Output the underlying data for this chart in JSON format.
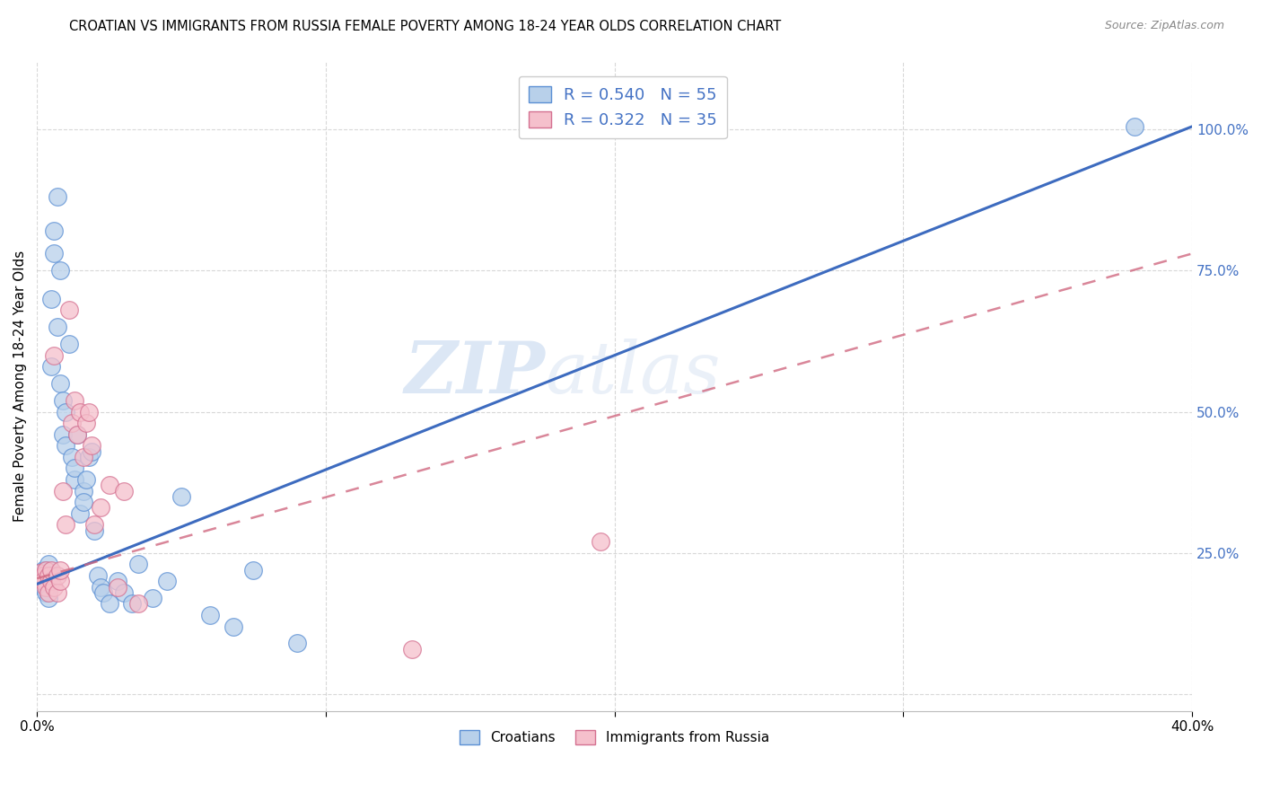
{
  "title": "CROATIAN VS IMMIGRANTS FROM RUSSIA FEMALE POVERTY AMONG 18-24 YEAR OLDS CORRELATION CHART",
  "source": "Source: ZipAtlas.com",
  "ylabel": "Female Poverty Among 18-24 Year Olds",
  "legend_blue_label": "R = 0.540   N = 55",
  "legend_pink_label": "R = 0.322   N = 35",
  "legend_label_blue": "Croatians",
  "legend_label_pink": "Immigrants from Russia",
  "blue_face": "#b8d0ea",
  "pink_face": "#f5c0cc",
  "blue_edge": "#5b8fd4",
  "pink_edge": "#d47090",
  "line_blue_color": "#3d6bbf",
  "line_pink_color": "#d06880",
  "watermark_zip": "ZIP",
  "watermark_atlas": "atlas",
  "blue_line_x0": 0.0,
  "blue_line_y0": 0.195,
  "blue_line_x1": 0.4,
  "blue_line_y1": 1.005,
  "pink_line_x0": 0.0,
  "pink_line_y0": 0.205,
  "pink_line_x1": 0.4,
  "pink_line_y1": 0.78,
  "blue_scatter_x": [
    0.001,
    0.001,
    0.001,
    0.002,
    0.002,
    0.002,
    0.003,
    0.003,
    0.003,
    0.003,
    0.004,
    0.004,
    0.004,
    0.005,
    0.005,
    0.005,
    0.005,
    0.006,
    0.006,
    0.007,
    0.007,
    0.008,
    0.008,
    0.009,
    0.009,
    0.01,
    0.01,
    0.011,
    0.012,
    0.013,
    0.013,
    0.014,
    0.015,
    0.016,
    0.016,
    0.017,
    0.018,
    0.019,
    0.02,
    0.021,
    0.022,
    0.023,
    0.025,
    0.028,
    0.03,
    0.033,
    0.035,
    0.04,
    0.045,
    0.05,
    0.06,
    0.068,
    0.075,
    0.09,
    0.38
  ],
  "blue_scatter_y": [
    0.205,
    0.215,
    0.195,
    0.22,
    0.2,
    0.19,
    0.21,
    0.18,
    0.2,
    0.22,
    0.23,
    0.19,
    0.17,
    0.58,
    0.7,
    0.2,
    0.21,
    0.82,
    0.78,
    0.88,
    0.65,
    0.75,
    0.55,
    0.46,
    0.52,
    0.44,
    0.5,
    0.62,
    0.42,
    0.38,
    0.4,
    0.46,
    0.32,
    0.36,
    0.34,
    0.38,
    0.42,
    0.43,
    0.29,
    0.21,
    0.19,
    0.18,
    0.16,
    0.2,
    0.18,
    0.16,
    0.23,
    0.17,
    0.2,
    0.35,
    0.14,
    0.12,
    0.22,
    0.09,
    1.005
  ],
  "pink_scatter_x": [
    0.001,
    0.001,
    0.002,
    0.002,
    0.003,
    0.003,
    0.004,
    0.004,
    0.005,
    0.005,
    0.006,
    0.006,
    0.007,
    0.007,
    0.008,
    0.008,
    0.009,
    0.01,
    0.011,
    0.012,
    0.013,
    0.014,
    0.015,
    0.016,
    0.017,
    0.018,
    0.019,
    0.02,
    0.022,
    0.025,
    0.028,
    0.03,
    0.035,
    0.13,
    0.195
  ],
  "pink_scatter_y": [
    0.215,
    0.205,
    0.21,
    0.2,
    0.22,
    0.19,
    0.21,
    0.18,
    0.2,
    0.22,
    0.6,
    0.19,
    0.21,
    0.18,
    0.2,
    0.22,
    0.36,
    0.3,
    0.68,
    0.48,
    0.52,
    0.46,
    0.5,
    0.42,
    0.48,
    0.5,
    0.44,
    0.3,
    0.33,
    0.37,
    0.19,
    0.36,
    0.16,
    0.08,
    0.27
  ],
  "xlim": [
    0.0,
    0.4
  ],
  "ylim": [
    -0.03,
    1.12
  ],
  "xticks": [
    0.0,
    0.1,
    0.2,
    0.3,
    0.4
  ],
  "yticks": [
    0.0,
    0.25,
    0.5,
    0.75,
    1.0
  ]
}
